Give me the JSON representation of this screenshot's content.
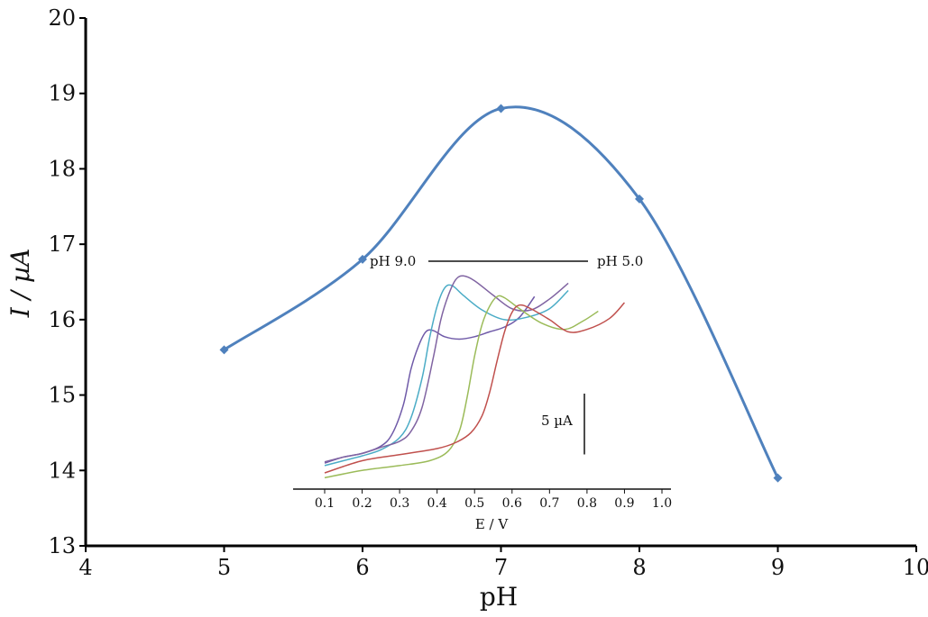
{
  "chart_data": [
    {
      "type": "line",
      "xlabel": "pH",
      "ylabel": "I / µA",
      "xlim": [
        4,
        10
      ],
      "ylim": [
        13,
        20
      ],
      "x_ticks": [
        "4",
        "5",
        "6",
        "7",
        "8",
        "9",
        "10"
      ],
      "y_ticks": [
        "13",
        "14",
        "15",
        "16",
        "17",
        "18",
        "19",
        "20"
      ],
      "grid": false,
      "series": [
        {
          "x": [
            5,
            6,
            7,
            8,
            9
          ],
          "values": [
            15.6,
            16.8,
            18.8,
            17.6,
            13.9
          ],
          "color": "#4f81bd",
          "marker": "diamond",
          "smooth": true
        }
      ]
    },
    {
      "type": "line",
      "role": "inset",
      "xlabel": "E / V",
      "xlim": [
        0.1,
        1.0
      ],
      "x_ticks": [
        "0.1",
        "0.2",
        "0.3",
        "0.4",
        "0.5",
        "0.6",
        "0.7",
        "0.8",
        "0.9",
        "1.0"
      ],
      "annotations": {
        "left": "pH  9.0",
        "right": "pH  5.0",
        "scale_bar": "5 µA"
      },
      "scale_bar_ua": 5,
      "series": [
        {
          "color": "#6f5aa8",
          "x": [
            0.1,
            0.15,
            0.2,
            0.25,
            0.28,
            0.31,
            0.33,
            0.35,
            0.37,
            0.39,
            0.42,
            0.46,
            0.5,
            0.54,
            0.58,
            0.62,
            0.66
          ],
          "values": [
            0.8,
            1.3,
            1.6,
            2.2,
            3.2,
            5.6,
            8.5,
            10.4,
            11.6,
            11.7,
            11.2,
            11.0,
            11.2,
            11.6,
            12.0,
            12.8,
            14.5
          ]
        },
        {
          "color": "#4bacc6",
          "x": [
            0.1,
            0.15,
            0.2,
            0.25,
            0.3,
            0.33,
            0.36,
            0.38,
            0.4,
            0.42,
            0.44,
            0.47,
            0.52,
            0.58,
            0.64,
            0.7,
            0.75
          ],
          "values": [
            0.6,
            1.0,
            1.4,
            1.9,
            2.9,
            4.5,
            7.8,
            11.1,
            13.7,
            15.2,
            15.4,
            14.6,
            13.4,
            12.6,
            12.8,
            13.5,
            15.0
          ]
        },
        {
          "color": "#8064a2",
          "x": [
            0.1,
            0.15,
            0.2,
            0.25,
            0.3,
            0.33,
            0.36,
            0.39,
            0.41,
            0.43,
            0.45,
            0.47,
            0.5,
            0.55,
            0.6,
            0.65,
            0.7,
            0.75
          ],
          "values": [
            0.9,
            1.3,
            1.6,
            2.1,
            2.6,
            3.4,
            5.4,
            9.5,
            12.6,
            14.6,
            15.9,
            16.2,
            15.8,
            14.6,
            13.5,
            13.4,
            14.3,
            15.6
          ]
        },
        {
          "color": "#9bbb59",
          "x": [
            0.1,
            0.2,
            0.3,
            0.38,
            0.43,
            0.46,
            0.48,
            0.5,
            0.52,
            0.54,
            0.56,
            0.58,
            0.62,
            0.68,
            0.74,
            0.79,
            0.83
          ],
          "values": [
            -0.4,
            0.2,
            0.6,
            1.0,
            1.8,
            3.5,
            6.2,
            9.6,
            12.2,
            13.7,
            14.5,
            14.4,
            13.5,
            12.3,
            11.8,
            12.5,
            13.3
          ]
        },
        {
          "color": "#c0504d",
          "x": [
            0.1,
            0.2,
            0.3,
            0.4,
            0.45,
            0.49,
            0.52,
            0.54,
            0.56,
            0.58,
            0.6,
            0.62,
            0.65,
            0.7,
            0.75,
            0.8,
            0.86,
            0.9
          ],
          "values": [
            0.0,
            1.0,
            1.5,
            2.0,
            2.5,
            3.3,
            4.7,
            6.6,
            9.2,
            11.6,
            13.2,
            13.8,
            13.5,
            12.6,
            11.6,
            11.8,
            12.7,
            14.0
          ]
        }
      ]
    }
  ]
}
